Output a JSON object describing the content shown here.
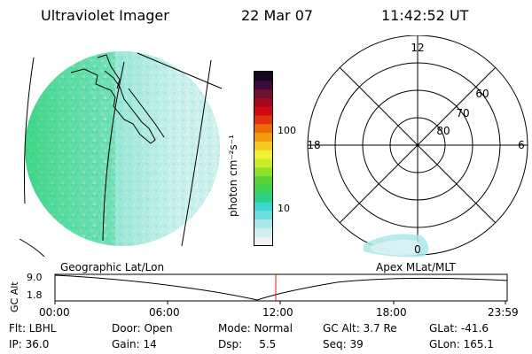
{
  "header": {
    "title": "Ultraviolet Imager",
    "date": "22 Mar 07",
    "time": "11:42:52 UT"
  },
  "colorbar": {
    "unit_label": "photon cm⁻²s⁻¹",
    "ticks": [
      "100",
      "10"
    ],
    "colors": [
      "#f0f0f0",
      "#cfeef0",
      "#a8e8ea",
      "#6fdde0",
      "#3fd6cf",
      "#28d08a",
      "#3cd25a",
      "#5ad235",
      "#8ee028",
      "#c9ec28",
      "#f2f030",
      "#f5c820",
      "#f39a10",
      "#ee6a08",
      "#e23010",
      "#cf0a10",
      "#a30820",
      "#6e1030",
      "#3c0a3a",
      "#150520"
    ]
  },
  "polar": {
    "lat_labels": [
      "60",
      "70",
      "80"
    ],
    "mlt_labels": {
      "top": "12",
      "left": "18",
      "right": "6",
      "bottom": "0"
    }
  },
  "timeline": {
    "left_label": "Geographic Lat/Lon",
    "right_label": "Apex  MLat/MLT",
    "axis_title": "GC Alt",
    "y_ticks": [
      "9.0",
      "1.8"
    ],
    "x_ticks": [
      "00:00",
      "06:00",
      "12:00",
      "18:00",
      "23:59"
    ]
  },
  "info": {
    "row1": [
      "Flt: LBHL",
      "Door: Open",
      "Mode: Normal",
      "GC Alt: 3.7 Re",
      "GLat: -41.6"
    ],
    "row2": [
      "IP: 36.0",
      "Gain: 14",
      "Dsp:     5.5",
      "Seq: 39",
      "GLon: 165.1"
    ]
  }
}
